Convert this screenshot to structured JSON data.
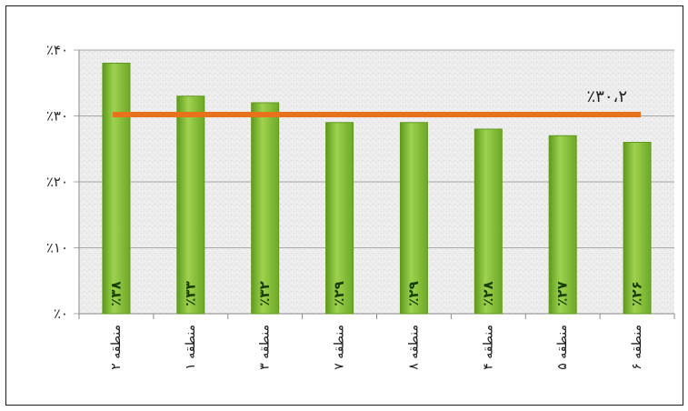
{
  "chart_data": {
    "type": "bar",
    "title": "",
    "xlabel": "",
    "ylabel": "",
    "ylim": [
      0,
      40
    ],
    "grid": true,
    "legend": "none",
    "y_ticks": [
      {
        "value": 0,
        "label": "٪۰"
      },
      {
        "value": 10,
        "label": "٪۱۰"
      },
      {
        "value": 20,
        "label": "٪۲۰"
      },
      {
        "value": 30,
        "label": "٪۳۰"
      },
      {
        "value": 40,
        "label": "٪۴۰"
      }
    ],
    "categories": [
      "منطقه ۲",
      "منطقه ۱",
      "منطقه ۳",
      "منطقه ۷",
      "منطقه ۸",
      "منطقه ۴",
      "منطقه ۵",
      "منطقه ۶"
    ],
    "values": [
      38,
      33,
      32,
      29,
      29,
      28,
      27,
      26
    ],
    "value_labels": [
      "٪۳۸",
      "٪۳۳",
      "٪۳۲",
      "٪۲۹",
      "٪۲۹",
      "٪۲۸",
      "٪۲۷",
      "٪۲۶"
    ],
    "average": {
      "value": 30.2,
      "label": "٪۳۰،۲"
    },
    "colors": {
      "bar": "#8cc63f",
      "bar_dark": "#5f9a1e",
      "average_line": "#e8711c",
      "plot_bg": "#ececec",
      "grid": "#a8a8a8"
    }
  }
}
